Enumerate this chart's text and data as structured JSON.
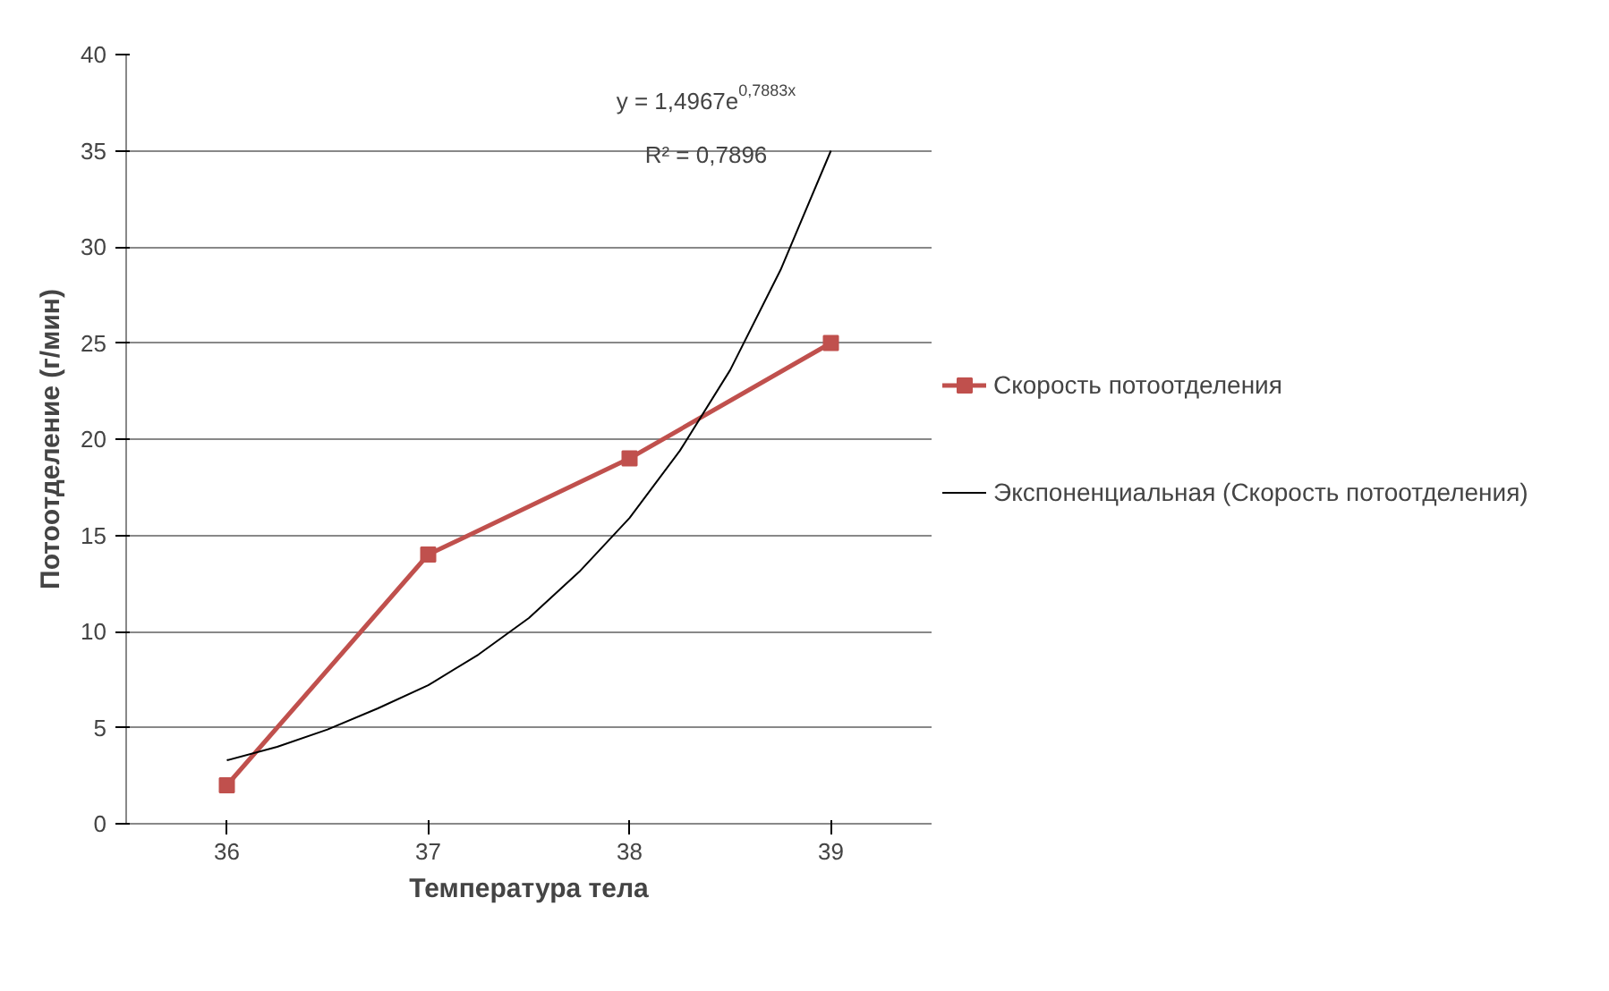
{
  "chart_data": {
    "type": "line",
    "xlabel": "Температура тела",
    "ylabel": "Потоотделение (г/мин)",
    "x": [
      36,
      37,
      38,
      39
    ],
    "xlim": [
      35.5,
      39.5
    ],
    "xticks": [
      36,
      37,
      38,
      39
    ],
    "ylim": [
      0,
      40
    ],
    "yticks": [
      0,
      5,
      10,
      15,
      20,
      25,
      30,
      35,
      40
    ],
    "grid": "y",
    "legend": "right",
    "series": [
      {
        "name": "Скорость потоотделения",
        "color": "#c0504d",
        "values": [
          2,
          14,
          19,
          25
        ],
        "marker": "square"
      },
      {
        "name": "Экспоненциальная (Скорость потоотделения)",
        "color": "#000000",
        "type": "line",
        "marker": "none",
        "x": [
          36,
          36.25,
          36.5,
          36.75,
          37,
          37.25,
          37.5,
          37.75,
          38,
          38.25,
          38.5,
          38.75,
          39
        ],
        "values": [
          3.3,
          4.0,
          4.9,
          6.0,
          7.2,
          8.8,
          10.7,
          13.1,
          15.9,
          19.4,
          23.6,
          28.8,
          35.0
        ]
      }
    ],
    "annotations": [
      "y = 1,4967e$^{0,7883x}$",
      "R² = 0,7896"
    ]
  }
}
